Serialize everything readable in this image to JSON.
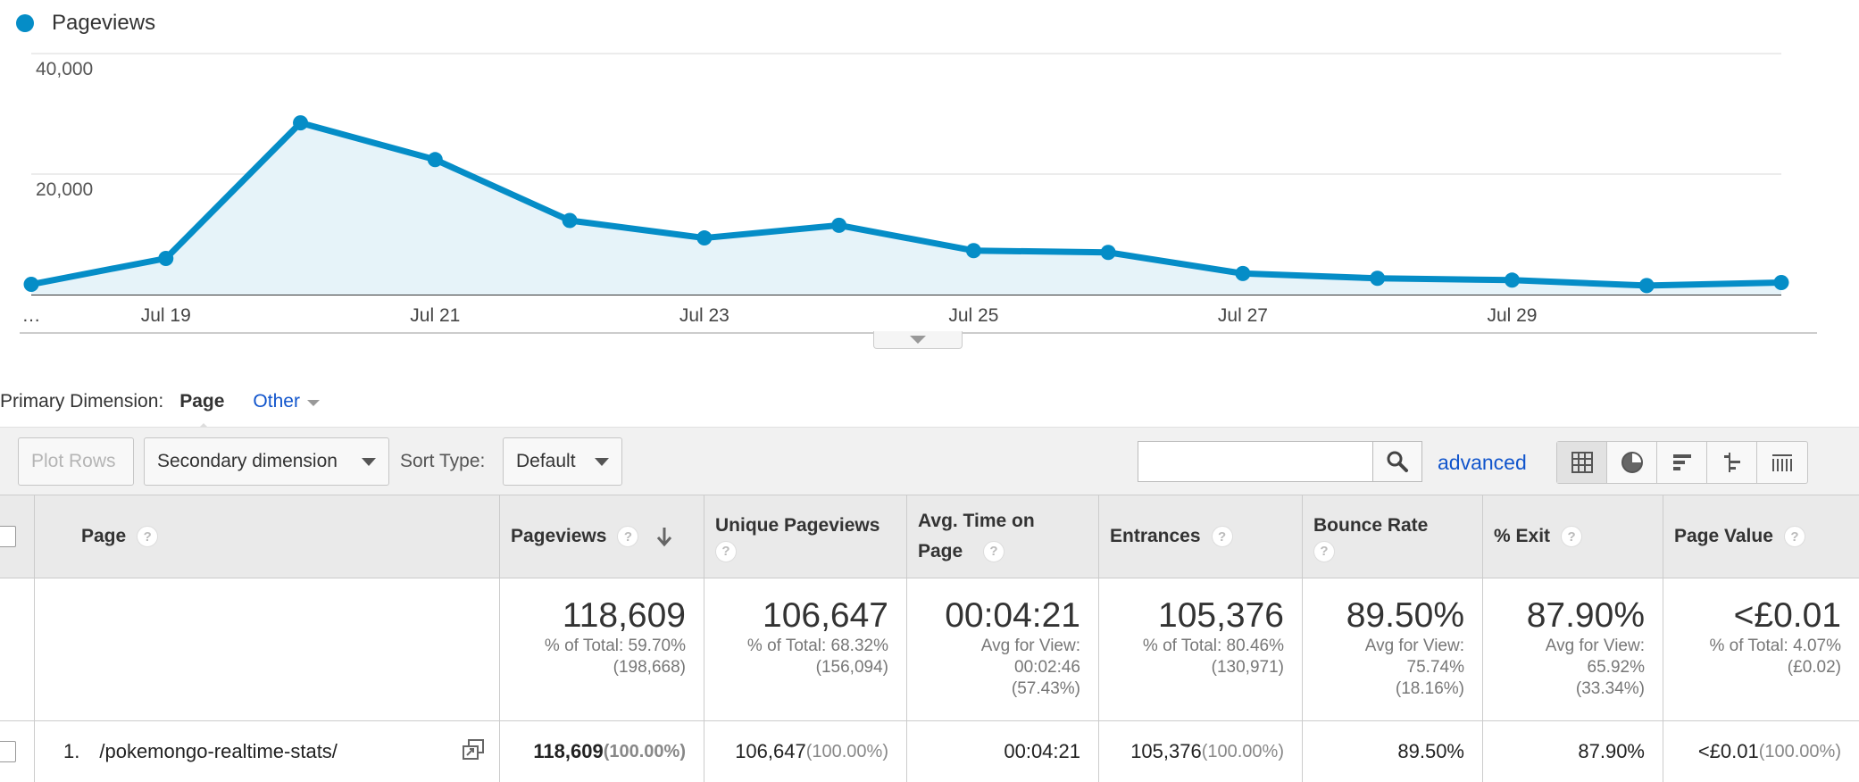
{
  "legend": {
    "label": "Pageviews",
    "color": "#058dc7"
  },
  "chart_data": {
    "type": "area",
    "series": [
      {
        "name": "Pageviews",
        "x": [
          "Jul 18",
          "Jul 19",
          "Jul 20",
          "Jul 21",
          "Jul 22",
          "Jul 23",
          "Jul 24",
          "Jul 25",
          "Jul 26",
          "Jul 27",
          "Jul 28",
          "Jul 29",
          "Jul 30",
          "Jul 31"
        ],
        "values": [
          1700,
          6000,
          28500,
          22400,
          12300,
          9400,
          11500,
          7300,
          7000,
          3500,
          2700,
          2400,
          1500,
          2000
        ]
      }
    ],
    "x_ticks": [
      "…",
      "Jul 19",
      "Jul 21",
      "Jul 23",
      "Jul 25",
      "Jul 27",
      "Jul 29"
    ],
    "y_ticks": [
      "40,000",
      "20,000"
    ],
    "ylim": [
      0,
      40000
    ],
    "line_color": "#058dc7",
    "fill_color": "#e6f3f9",
    "grid": true
  },
  "primary_dimension": {
    "label": "Primary Dimension:",
    "active": "Page",
    "other": "Other"
  },
  "toolbar": {
    "plot_rows": "Plot Rows",
    "secondary_dimension": "Secondary dimension",
    "sort_type_label": "Sort Type:",
    "sort_type_value": "Default",
    "search_value": "",
    "advanced": "advanced"
  },
  "table": {
    "headers": {
      "page": "Page",
      "pageviews": "Pageviews",
      "unique": "Unique Pageviews",
      "avg_time": "Avg. Time on Page",
      "entrances": "Entrances",
      "bounce": "Bounce Rate",
      "exit": "% Exit",
      "value": "Page Value"
    },
    "help_glyph": "?",
    "totals": {
      "pageviews": {
        "value": "118,609",
        "sub1": "% of Total: 59.70%",
        "sub2": "(198,668)"
      },
      "unique": {
        "value": "106,647",
        "sub1": "% of Total: 68.32%",
        "sub2": "(156,094)"
      },
      "avg_time": {
        "value": "00:04:21",
        "sub1": "Avg for View:",
        "sub2": "00:02:46",
        "sub3": "(57.43%)"
      },
      "entrances": {
        "value": "105,376",
        "sub1": "% of Total: 80.46%",
        "sub2": "(130,971)"
      },
      "bounce": {
        "value": "89.50%",
        "sub1": "Avg for View:",
        "sub2": "75.74%",
        "sub3": "(18.16%)"
      },
      "exit": {
        "value": "87.90%",
        "sub1": "Avg for View:",
        "sub2": "65.92%",
        "sub3": "(33.34%)"
      },
      "value": {
        "value": "<£0.01",
        "sub1": "% of Total: 4.07%",
        "sub2": "(£0.02)"
      }
    },
    "rows": [
      {
        "index": "1.",
        "page": "/pokemongo-realtime-stats/",
        "pageviews": "118,609",
        "pageviews_pct": "(100.00%)",
        "unique": "106,647",
        "unique_pct": "(100.00%)",
        "avg_time": "00:04:21",
        "entrances": "105,376",
        "entrances_pct": "(100.00%)",
        "bounce": "89.50%",
        "exit": "87.90%",
        "value": "<£0.01",
        "value_pct": "(100.00%)"
      }
    ]
  }
}
